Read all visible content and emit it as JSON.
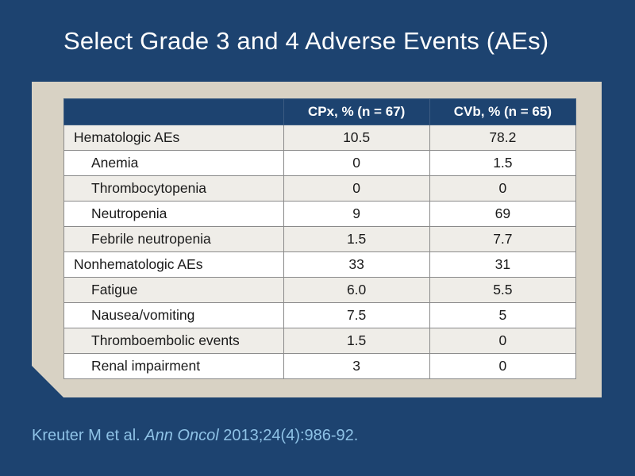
{
  "slide": {
    "title": "Select Grade 3 and 4 Adverse Events (AEs)"
  },
  "table": {
    "headers": [
      "",
      "CPx, % (n = 67)",
      "CVb, % (n = 65)"
    ],
    "rows": [
      {
        "label": "Hematologic AEs",
        "indent": false,
        "cpx": "10.5",
        "cvb": "78.2"
      },
      {
        "label": "Anemia",
        "indent": true,
        "cpx": "0",
        "cvb": "1.5"
      },
      {
        "label": "Thrombocytopenia",
        "indent": true,
        "cpx": "0",
        "cvb": "0"
      },
      {
        "label": "Neutropenia",
        "indent": true,
        "cpx": "9",
        "cvb": "69"
      },
      {
        "label": "Febrile neutropenia",
        "indent": true,
        "cpx": "1.5",
        "cvb": "7.7"
      },
      {
        "label": "Nonhematologic AEs",
        "indent": false,
        "cpx": "33",
        "cvb": "31"
      },
      {
        "label": "Fatigue",
        "indent": true,
        "cpx": "6.0",
        "cvb": "5.5"
      },
      {
        "label": "Nausea/vomiting",
        "indent": true,
        "cpx": "7.5",
        "cvb": "5"
      },
      {
        "label": "Thromboembolic events",
        "indent": true,
        "cpx": "1.5",
        "cvb": "0"
      },
      {
        "label": "Renal impairment",
        "indent": true,
        "cpx": "3",
        "cvb": "0"
      }
    ]
  },
  "citation": {
    "authors": "Kreuter M et al.",
    "journal": "Ann Oncol",
    "ref": "2013;24(4):986-92."
  },
  "colors": {
    "background": "#1d4370",
    "panel": "#d8d2c4",
    "citation": "#8ec2e6"
  }
}
